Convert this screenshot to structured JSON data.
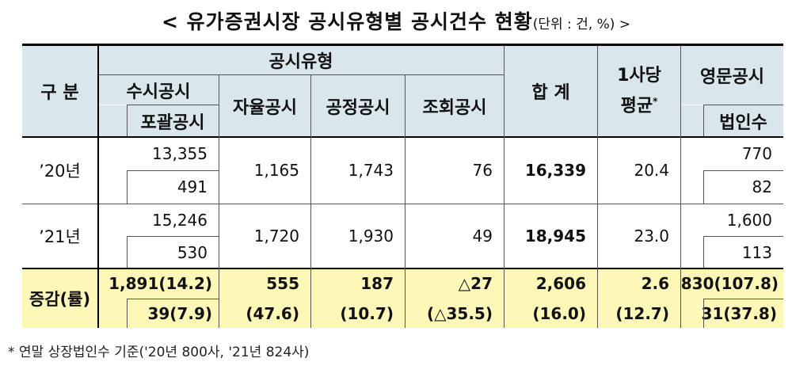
{
  "title": "< 유가증권시장 공시유형별 공시건수 현황",
  "unit": "(단위 : 건, %) >",
  "headers": {
    "category": "구 분",
    "disclosure_type": "공시유형",
    "periodic": "수시공시",
    "comprehensive": "포괄공시",
    "voluntary": "자율공시",
    "fair": "공정공시",
    "inquiry": "조회공시",
    "total": "합 계",
    "avg_line1": "1사당",
    "avg_line2": "평균",
    "avg_mark": "*",
    "english": "영문공시",
    "corp_count": "법인수"
  },
  "rows": [
    {
      "label": "’20년",
      "periodic": "13,355",
      "comprehensive": "491",
      "voluntary": "1,165",
      "fair": "1,743",
      "inquiry": "76",
      "total": "16,339",
      "avg": "20.4",
      "english": "770",
      "corp": "82"
    },
    {
      "label": "’21년",
      "periodic": "15,246",
      "comprehensive": "530",
      "voluntary": "1,720",
      "fair": "1,930",
      "inquiry": "49",
      "total": "18,945",
      "avg": "23.0",
      "english": "1,600",
      "corp": "113"
    }
  ],
  "change": {
    "label": "증감(률)",
    "periodic": "1,891(14.2)",
    "comprehensive": "39(7.9)",
    "voluntary": "555",
    "voluntary_rate": "(47.6)",
    "fair": "187",
    "fair_rate": "(10.7)",
    "inquiry": "△27",
    "inquiry_rate": "(△35.5)",
    "total": "2,606",
    "total_rate": "(16.0)",
    "avg": "2.6",
    "avg_rate": "(12.7)",
    "english": "830(107.8)",
    "corp": "31(37.8)"
  },
  "footnote": "* 연말 상장법인수 기준('20년 800사, '21년 824사)",
  "colors": {
    "header_bg": "#d9e6ec",
    "change_bg": "#fdf8b8"
  }
}
